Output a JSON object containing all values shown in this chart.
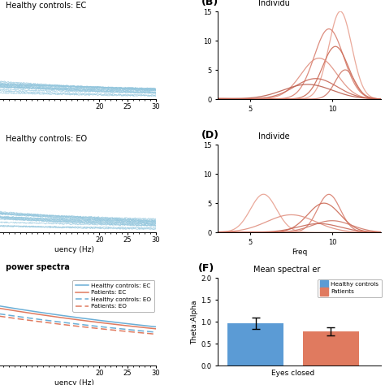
{
  "panel_A_title": "Healthy controls: EC",
  "panel_C_title": "Healthy controls: EO",
  "panel_E_title": "power spectra",
  "panel_B_label": "(B)",
  "panel_D_label": "(D)",
  "panel_F_label": "(F)",
  "panel_F_title": "Mean spectral er",
  "panel_B_subtitle": "Individu",
  "panel_D_subtitle": "Individe",
  "blue_color": "#6AAED6",
  "orange_color": "#E07A5F",
  "light_blue": "#93C6DD",
  "bar_blue": "#5B9BD5",
  "bar_orange": "#E07A5F",
  "healthy_EC_value": 0.97,
  "healthy_EC_err": 0.13,
  "patient_EC_value": 0.78,
  "patient_EC_err": 0.09,
  "bar_ylabel": "Theta:Alpha",
  "bar_xlabel": "Eyes closed",
  "legend_labels": [
    "Healthy controls: EC",
    "Patients: EC",
    "Healthy controls: EO",
    "Patients: EO"
  ],
  "legend_labels_F": [
    "Healthy controls",
    "Patients"
  ],
  "xlim_left": [
    1,
    30
  ],
  "xlim_right": [
    3,
    13
  ],
  "ylim_AB": [
    0,
    15
  ],
  "yticks_AB": [
    0,
    5,
    10,
    15
  ],
  "xticks_AB": [
    5,
    10
  ],
  "bar_ylim": [
    0,
    2.0
  ],
  "bar_yticks": [
    0,
    0.5,
    1.0,
    1.5,
    2.0
  ]
}
